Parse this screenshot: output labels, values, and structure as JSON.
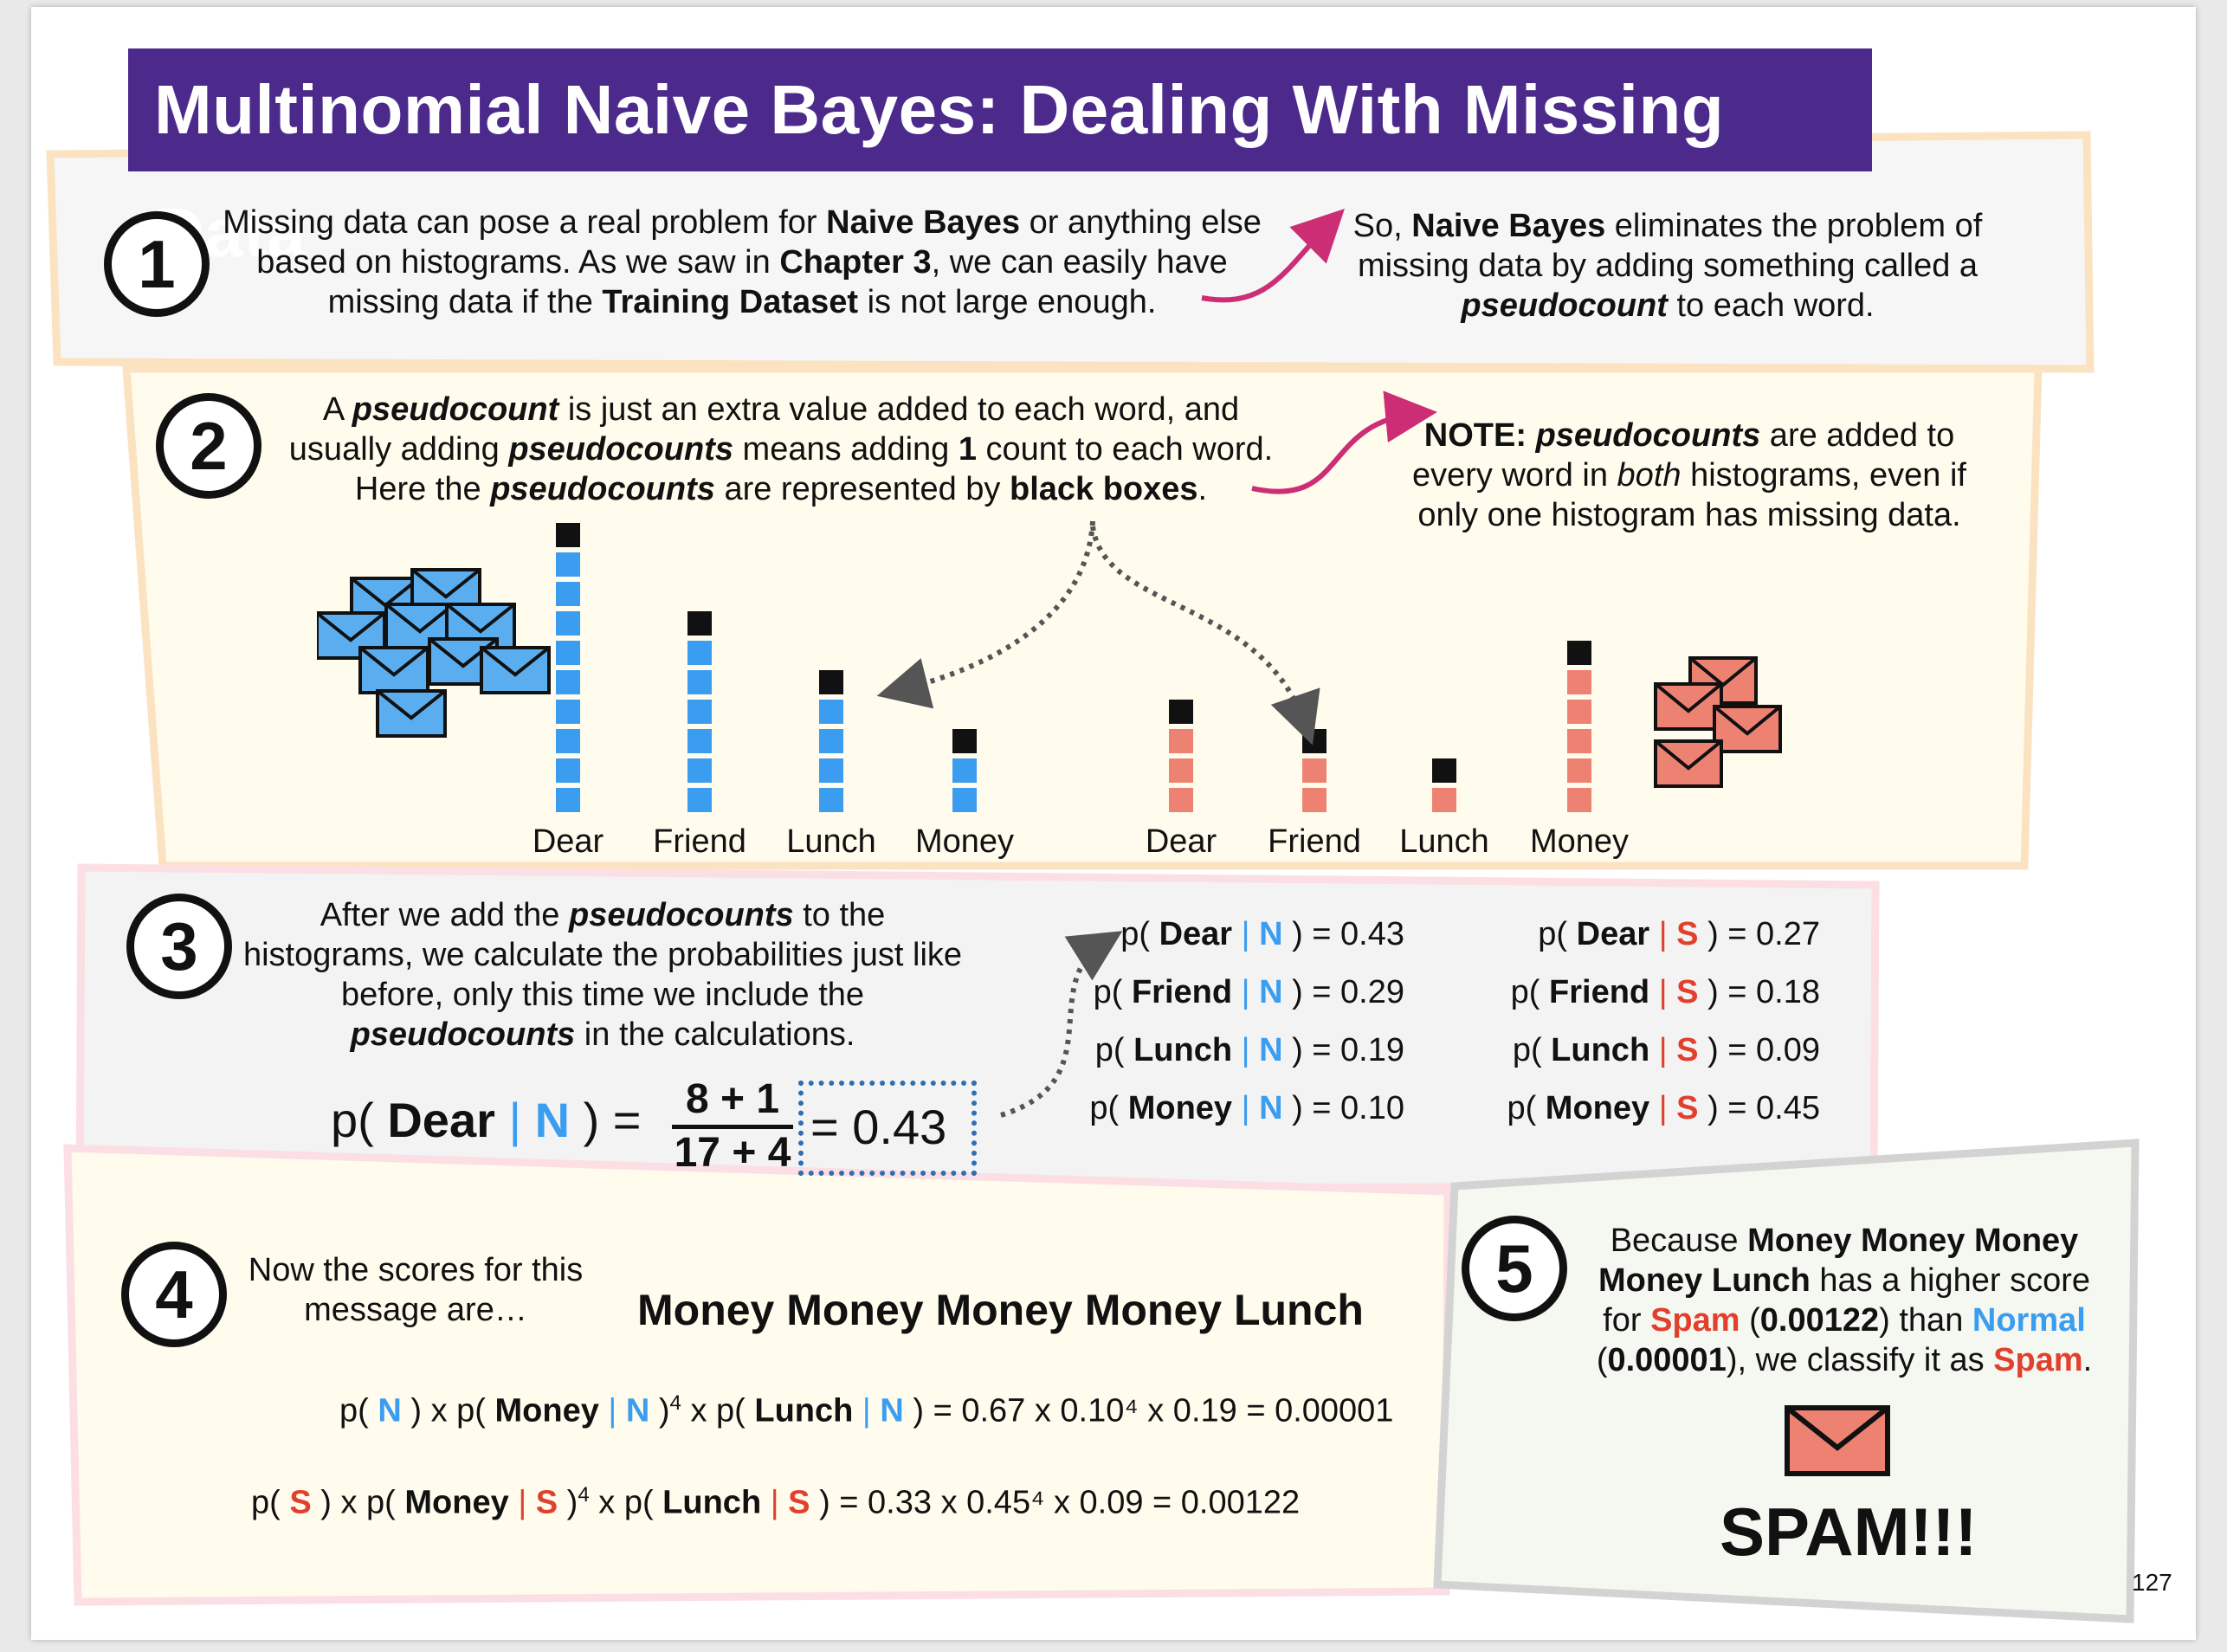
{
  "title": "Multinomial Naive Bayes: Dealing With Missing Data",
  "page_number": "127",
  "colors": {
    "title_bg": "#4b2a8c",
    "normal_blue": "#3b9df0",
    "spam_red": "#e2402e",
    "spam_salmon": "#ee8272",
    "arrow_magenta": "#cc2e75"
  },
  "step1": {
    "number": "1",
    "text_html": "Missing data can pose a real problem for <b>Naive Bayes</b> or anything else based on histograms. As we saw in <b>Chapter 3</b>, we can easily have missing data if the <b>Training Dataset</b> is not large enough.",
    "side_html": "So, <b>Naive Bayes</b> eliminates the problem of missing data by adding something called a <b><i>pseudocount</i></b> to each word."
  },
  "step2": {
    "number": "2",
    "text_html": "A <b><i>pseudocount</i></b> is just an extra value added to each word, and usually adding <b><i>pseudocounts</i></b> means adding <b>1</b> count to each word. Here the <b><i>pseudocounts</i></b> are represented by <b>black boxes</b>.",
    "note_html": "<b>NOTE:</b> <b><i>pseudocounts</i></b> are added to every word in <i>both</i> histograms, even if only one histogram has missing data."
  },
  "step3": {
    "number": "3",
    "text_html": "After we add the <b><i>pseudocounts</i></b> to the histograms, we calculate the probabilities just like before, only this time we include the <b><i>pseudocounts</i></b> in the calculations.",
    "formula": {
      "prefix": "p(",
      "word": "Dear",
      "bar": "|",
      "cls": "N",
      "suffix": ") =",
      "numerator": "8 + 1",
      "denominator": "17 + 4",
      "result": "= 0.43"
    },
    "normal_probs": [
      {
        "word": "Dear",
        "value": "0.43"
      },
      {
        "word": "Friend",
        "value": "0.29"
      },
      {
        "word": "Lunch",
        "value": "0.19"
      },
      {
        "word": "Money",
        "value": "0.10"
      }
    ],
    "spam_probs": [
      {
        "word": "Dear",
        "value": "0.27"
      },
      {
        "word": "Friend",
        "value": "0.18"
      },
      {
        "word": "Lunch",
        "value": "0.09"
      },
      {
        "word": "Money",
        "value": "0.45"
      }
    ]
  },
  "step4": {
    "number": "4",
    "text": "Now the scores for this message are…",
    "message": "Money Money Money Money Lunch",
    "normal_score": "= 0.67 x 0.10⁴ x 0.19 = 0.00001",
    "spam_score": "= 0.33 x 0.45⁴ x 0.09 = 0.00122"
  },
  "step5": {
    "number": "5",
    "text_html": "Because <b>Money Money Money Money Lunch</b> has a higher score for <span class=\"red\">Spam</span> (<b>0.00122</b>) than <span class=\"blue\">Normal</span> (<b>0.00001</b>), we classify it as <span class=\"red\">Spam</span>.",
    "verdict": "SPAM!!!"
  },
  "chart_data": [
    {
      "type": "bar",
      "title": "",
      "categories": [
        "Dear",
        "Friend",
        "Lunch",
        "Money"
      ],
      "series": [
        {
          "values": [
            9,
            6,
            4,
            2
          ]
        }
      ],
      "pseudocount": 1
    },
    {
      "type": "bar",
      "title": "",
      "categories": [
        "Dear",
        "Friend",
        "Lunch",
        "Money"
      ],
      "series": [
        {
          "values": [
            3,
            2,
            1,
            5
          ]
        }
      ],
      "pseudocount": 1
    }
  ]
}
